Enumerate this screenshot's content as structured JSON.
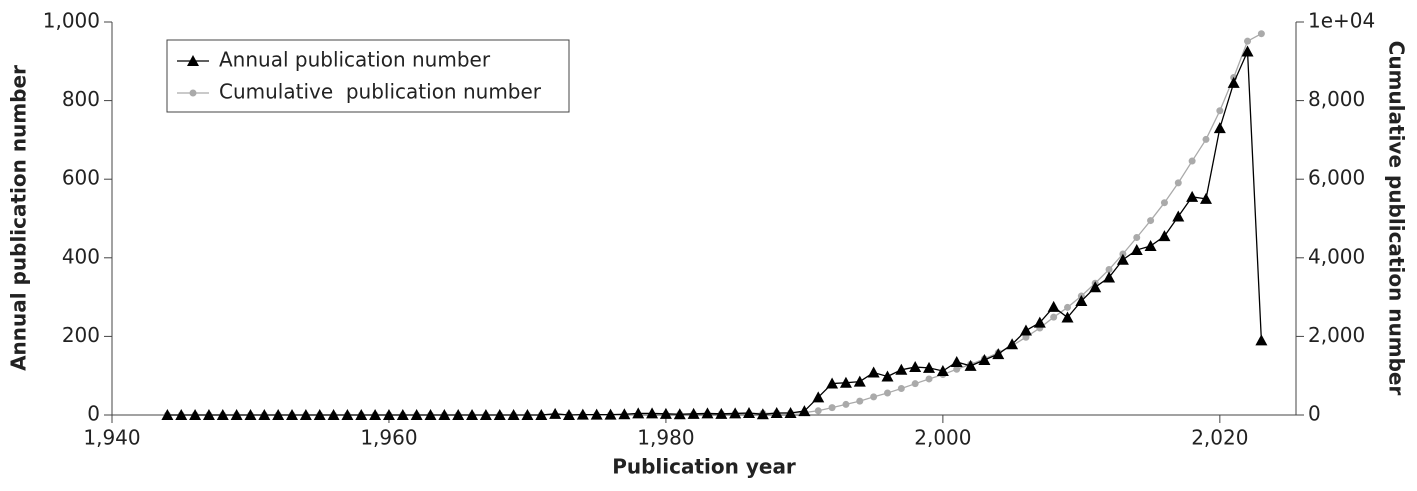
{
  "chart_data": {
    "type": "line",
    "xlabel": "Publication year",
    "ylabel": "Annual publication number",
    "y2label": "Cumulative  publication number",
    "x": [
      1944,
      1945,
      1946,
      1947,
      1948,
      1949,
      1950,
      1951,
      1952,
      1953,
      1954,
      1955,
      1956,
      1957,
      1958,
      1959,
      1960,
      1961,
      1962,
      1963,
      1964,
      1965,
      1966,
      1967,
      1968,
      1969,
      1970,
      1971,
      1972,
      1973,
      1974,
      1975,
      1976,
      1977,
      1978,
      1979,
      1980,
      1981,
      1982,
      1983,
      1984,
      1985,
      1986,
      1987,
      1988,
      1989,
      1990,
      1991,
      1992,
      1993,
      1994,
      1995,
      1996,
      1997,
      1998,
      1999,
      2000,
      2001,
      2002,
      2003,
      2004,
      2005,
      2006,
      2007,
      2008,
      2009,
      2010,
      2011,
      2012,
      2013,
      2014,
      2015,
      2016,
      2017,
      2018,
      2019,
      2020,
      2021,
      2022,
      2023
    ],
    "series": [
      {
        "name": "Annual publication number",
        "color": "#000000",
        "marker": "triangle",
        "axis": "y",
        "values": [
          0,
          0,
          0,
          0,
          0,
          0,
          0,
          0,
          0,
          0,
          0,
          0,
          0,
          0,
          0,
          0,
          0,
          0,
          0,
          0,
          0,
          0,
          0,
          0,
          0,
          0,
          0,
          0,
          3,
          0,
          1,
          1,
          1,
          2,
          4,
          4,
          3,
          2,
          3,
          4,
          3,
          4,
          5,
          2,
          5,
          5,
          10,
          45,
          80,
          82,
          85,
          108,
          98,
          115,
          122,
          120,
          112,
          135,
          125,
          140,
          155,
          180,
          215,
          235,
          275,
          248,
          290,
          325,
          350,
          395,
          420,
          430,
          455,
          505,
          555,
          550,
          730,
          845,
          925,
          190
        ]
      },
      {
        "name": "Cumulative  publication number",
        "color": "#aaaaaa",
        "marker": "circle",
        "axis": "y2",
        "values": [
          0,
          0,
          0,
          0,
          0,
          0,
          0,
          0,
          0,
          0,
          0,
          0,
          0,
          0,
          0,
          0,
          0,
          0,
          0,
          0,
          0,
          0,
          0,
          0,
          0,
          0,
          0,
          0,
          3,
          3,
          4,
          5,
          6,
          8,
          12,
          16,
          19,
          21,
          24,
          28,
          31,
          35,
          40,
          42,
          47,
          52,
          62,
          107,
          187,
          269,
          354,
          462,
          560,
          675,
          797,
          917,
          1029,
          1164,
          1289,
          1429,
          1584,
          1764,
          1979,
          2214,
          2489,
          2737,
          3027,
          3352,
          3702,
          4097,
          4517,
          4947,
          5402,
          5907,
          6462,
          7012,
          7742,
          8587,
          9512,
          9702
        ]
      }
    ],
    "xlim": [
      1940,
      2025.5
    ],
    "xticks": [
      {
        "value": 1940,
        "label": "1,940"
      },
      {
        "value": 1960,
        "label": "1,960"
      },
      {
        "value": 1980,
        "label": "1,980"
      },
      {
        "value": 2000,
        "label": "2,000"
      },
      {
        "value": 2020,
        "label": "2,020"
      }
    ],
    "ylim": [
      0,
      1000
    ],
    "yticks": [
      0,
      200,
      400,
      600,
      800,
      {
        "value": 1000,
        "label": "1,000"
      }
    ],
    "y2lim": [
      0,
      10000
    ],
    "y2ticks": [
      0,
      {
        "value": 2000,
        "label": "2,000"
      },
      {
        "value": 4000,
        "label": "4,000"
      },
      {
        "value": 6000,
        "label": "6,000"
      },
      {
        "value": 8000,
        "label": "8,000"
      },
      {
        "value": 10000,
        "label": "1e+04"
      }
    ],
    "legend": "top-left",
    "grid": false
  }
}
